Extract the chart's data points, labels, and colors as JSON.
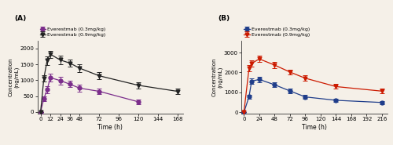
{
  "bg_color": "#f5f0e8",
  "panel_A": {
    "label": "(A)",
    "xlabel": "Time (h)",
    "ylabel": "Concentration\n(ng/mL)",
    "xticks": [
      0,
      12,
      24,
      36,
      48,
      72,
      96,
      120,
      144,
      168
    ],
    "xlim": [
      -4,
      175
    ],
    "ylim": [
      -60,
      2250
    ],
    "yticks": [
      0,
      500,
      1000,
      1500,
      2000
    ],
    "series": [
      {
        "label": "Everestmab (0.3mg/kg)",
        "color": "#7b2d8b",
        "marker": "o",
        "markersize": 3.5,
        "x": [
          0,
          4,
          8,
          12,
          24,
          36,
          48,
          72,
          120
        ],
        "y": [
          0,
          420,
          700,
          1080,
          990,
          875,
          750,
          650,
          320
        ],
        "yerr": [
          0,
          80,
          120,
          130,
          120,
          100,
          110,
          90,
          80
        ]
      },
      {
        "label": "Everestmab (0.9mg/kg)",
        "color": "#222222",
        "marker": "v",
        "markersize": 3.5,
        "x": [
          0,
          4,
          8,
          12,
          24,
          36,
          48,
          72,
          120,
          168
        ],
        "y": [
          0,
          1060,
          1620,
          1820,
          1640,
          1540,
          1380,
          1140,
          840,
          650
        ],
        "yerr": [
          0,
          100,
          130,
          110,
          130,
          120,
          120,
          110,
          100,
          80
        ]
      }
    ]
  },
  "panel_B": {
    "label": "(B)",
    "xlabel": "Time (h)",
    "ylabel": "Concentration\n(ng/mL)",
    "xticks": [
      0,
      24,
      48,
      72,
      96,
      120,
      144,
      168,
      192,
      216
    ],
    "xlim": [
      -4,
      224
    ],
    "ylim": [
      -80,
      3600
    ],
    "yticks": [
      0,
      1000,
      2000,
      3000
    ],
    "series": [
      {
        "label": "Everestmab (0.3mg/kg)",
        "color": "#1f3d8a",
        "marker": "o",
        "markersize": 3.5,
        "x": [
          0,
          8,
          12,
          24,
          48,
          72,
          96,
          144,
          216
        ],
        "y": [
          0,
          780,
          1560,
          1650,
          1380,
          1070,
          770,
          600,
          490
        ],
        "yerr": [
          0,
          100,
          130,
          130,
          120,
          110,
          100,
          80,
          70
        ]
      },
      {
        "label": "Everestmab (0.9mg/kg)",
        "color": "#cc1a00",
        "marker": "v",
        "markersize": 3.5,
        "x": [
          0,
          8,
          12,
          24,
          48,
          72,
          96,
          144,
          216
        ],
        "y": [
          0,
          2220,
          2450,
          2680,
          2370,
          2020,
          1710,
          1290,
          1060
        ],
        "yerr": [
          0,
          150,
          170,
          150,
          150,
          130,
          140,
          120,
          110
        ]
      }
    ]
  }
}
